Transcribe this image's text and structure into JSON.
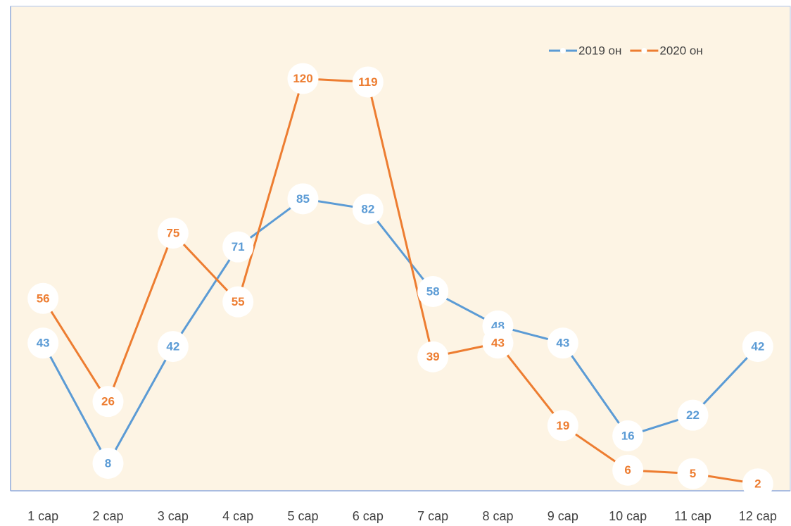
{
  "chart_data": {
    "type": "line",
    "categories": [
      "1 сар",
      "2 сар",
      "3 сар",
      "4 сар",
      "5 сар",
      "6 сар",
      "7 сар",
      "8 сар",
      "9 сар",
      "10 сар",
      "11 сар",
      "12 сар"
    ],
    "series": [
      {
        "name": "2019 он",
        "color": "#5b9bd5",
        "values": [
          43,
          8,
          42,
          71,
          85,
          82,
          58,
          48,
          43,
          16,
          22,
          42
        ]
      },
      {
        "name": "2020 он",
        "color": "#ed7d31",
        "values": [
          56,
          26,
          75,
          55,
          120,
          119,
          39,
          43,
          19,
          6,
          5,
          2
        ]
      }
    ],
    "ylim": [
      0,
      140
    ],
    "grid": false,
    "legend": "top-right",
    "background": "#fdf4e4"
  }
}
